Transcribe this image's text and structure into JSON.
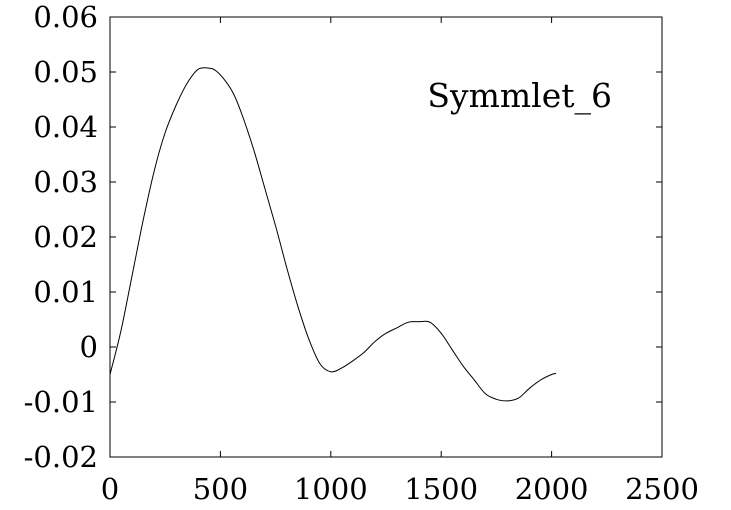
{
  "chart_data": {
    "type": "line",
    "title": "",
    "xlabel": "",
    "ylabel": "",
    "xlim": [
      0,
      2500
    ],
    "ylim": [
      -0.02,
      0.06
    ],
    "x_ticks": [
      0,
      500,
      1000,
      1500,
      2000,
      2500
    ],
    "x_tick_labels": [
      "0",
      "500",
      "1000",
      "1500",
      "2000",
      "2500"
    ],
    "y_ticks": [
      -0.02,
      -0.01,
      0,
      0.01,
      0.02,
      0.03,
      0.04,
      0.05,
      0.06
    ],
    "y_tick_labels": [
      "-0.02",
      "-0.01",
      "0",
      "0.01",
      "0.02",
      "0.03",
      "0.04",
      "0.05",
      "0.06"
    ],
    "grid": false,
    "legend_position": "top-right",
    "series": [
      {
        "name": "Symmlet_6",
        "color": "#000000",
        "x": [
          0,
          50,
          100,
          150,
          200,
          250,
          300,
          350,
          400,
          450,
          480,
          520,
          560,
          600,
          650,
          700,
          750,
          800,
          850,
          900,
          950,
          1000,
          1050,
          1100,
          1150,
          1200,
          1250,
          1300,
          1350,
          1400,
          1450,
          1500,
          1550,
          1600,
          1650,
          1700,
          1750,
          1800,
          1850,
          1900,
          1950,
          2000,
          2020
        ],
        "y": [
          -0.005,
          0.003,
          0.013,
          0.023,
          0.032,
          0.039,
          0.044,
          0.048,
          0.0505,
          0.0507,
          0.0502,
          0.0485,
          0.046,
          0.042,
          0.036,
          0.029,
          0.022,
          0.0145,
          0.0075,
          0.0015,
          -0.003,
          -0.0045,
          -0.0038,
          -0.0025,
          -0.001,
          0.001,
          0.0025,
          0.0035,
          0.0045,
          0.0046,
          0.0045,
          0.0025,
          -0.0005,
          -0.0035,
          -0.006,
          -0.0085,
          -0.0095,
          -0.0098,
          -0.0093,
          -0.0075,
          -0.006,
          -0.005,
          -0.0048
        ]
      }
    ]
  }
}
